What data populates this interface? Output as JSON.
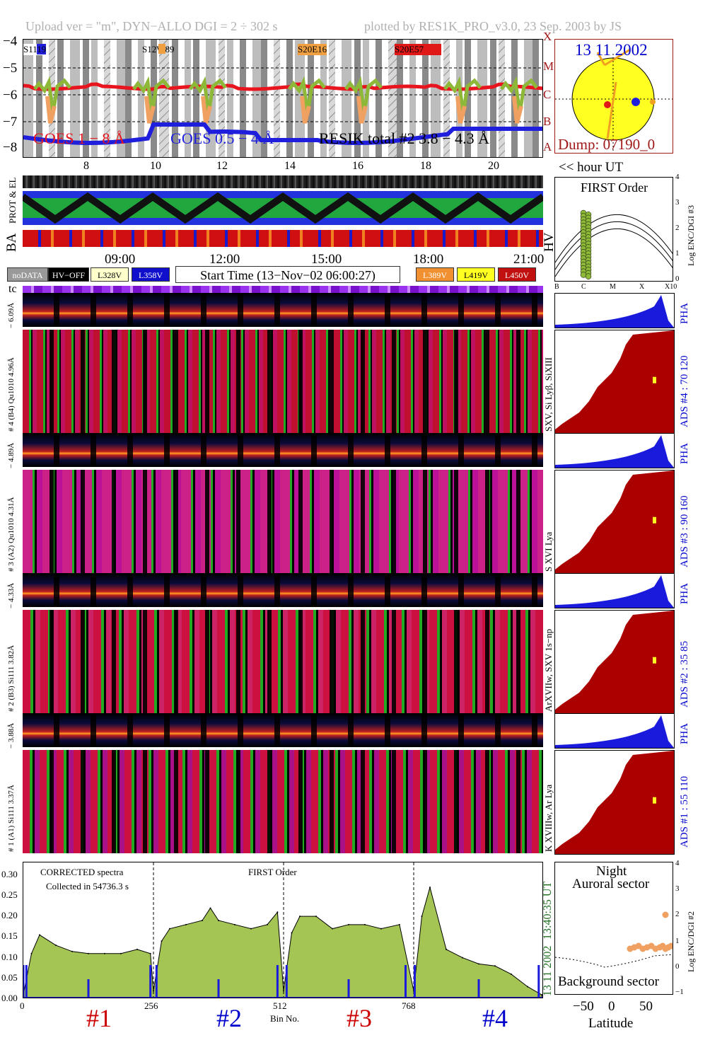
{
  "header": {
    "left": "Upload ver = \"m\", DYN−ALLO DGI =   2 ÷ 302 s",
    "right": "plotted by RES1K_PRO_v3.0, 23 Sep. 2003 by JS"
  },
  "goes": {
    "ylabels": [
      "−4",
      "−5",
      "−6",
      "−7",
      "−8"
    ],
    "class_labels": [
      "X",
      "M",
      "C",
      "B",
      "A"
    ],
    "active_regions": [
      "S11",
      "S12W89",
      "S20E16",
      "S20E57"
    ],
    "region_suffixes": [
      "19"
    ],
    "legend_goes1": "GOES 1 − 8 Å",
    "legend_goes05": "GOES 0.5 − 4 Å",
    "legend_resik": "RESIK total #2  3.8 − 4.3 Å",
    "hour_ticks": [
      "8",
      "10",
      "12",
      "14",
      "16",
      "18",
      "20"
    ],
    "hour_label": "<< hour UT",
    "colors": {
      "goes1": "#e8141e",
      "goes05": "#1e1edc",
      "resik": "#8db838"
    }
  },
  "sun": {
    "date": "13 11 2002",
    "dump": "Dump: 07190_0"
  },
  "orbit": {
    "labels": [
      "PROT & EL",
      "BA",
      "HV"
    ],
    "time_ticks": [
      "09:00",
      "12:00",
      "15:00",
      "18:00",
      "21:00"
    ]
  },
  "legend": {
    "nodata": "noDATA",
    "hvoff": "HV−OFF",
    "l328": "L328V",
    "l358": "L358V",
    "start_time": "Start Time (13−Nov−02 06:00:27)",
    "l389": "L389V",
    "l419": "L419V",
    "l450": "L450V",
    "tc": "tc"
  },
  "first_order": {
    "title": "FIRST Order",
    "ylabel": "Log ENC/DGI #3",
    "yticks": [
      "4",
      "3",
      "2",
      "1",
      "0"
    ],
    "xticks": [
      "B",
      "C",
      "M",
      "X",
      "X10"
    ]
  },
  "channels": [
    {
      "pha_label": "− 6.09Å",
      "name": "# 4 (B4) Qu1010 4.96Å",
      "line": "SXV, Si Lyβ, SiXIII",
      "ads": "ADS #4 :  70 120",
      "pha": "PHA"
    },
    {
      "pha_label": "− 4.89Å",
      "name": "# 3 (A2) Qu1010 4.31Å",
      "line": "S XVI Lya",
      "ads": "ADS #3 :  90 160",
      "pha": "PHA"
    },
    {
      "pha_label": "− 4.33Å",
      "name": "# 2 (B3) Si111 3.82Å",
      "line": "ArXVIIw, SXV 1s−np",
      "ads": "ADS #2 :  35 85",
      "pha": "PHA"
    },
    {
      "pha_label": "− 3.88Å",
      "name": "# 1 (A1) Si111 3.37Å",
      "line": "K XVIIIw, Ar Lya",
      "ads": "ADS #1 :  55 110",
      "pha": "PHA"
    }
  ],
  "spectrum": {
    "note1": "CORRECTED spectra",
    "note2": "Collected in 54736.3 s",
    "note3": "FIRST Order",
    "time_label": "13:40:35 UT",
    "date_label": "13 11 2002",
    "xlabel": "Bin No.",
    "yticks": [
      "0.30",
      "0.25",
      "0.20",
      "0.15",
      "0.10",
      "0.05",
      "0.00"
    ],
    "xticks": [
      "0",
      "256",
      "512",
      "768"
    ],
    "section_labels": [
      "#1",
      "#2",
      "#3",
      "#4"
    ],
    "section_colors": [
      "#cc0000",
      "#0000cc",
      "#cc0000",
      "#0000cc"
    ]
  },
  "latitude": {
    "title1": "Night",
    "title2": "Auroral sector",
    "bottom": "Background sector",
    "xlabel": "Latitude",
    "xticks": [
      "−50",
      "0",
      "50"
    ],
    "ylabel": "Log ENC/DGI #2",
    "yticks": [
      "4",
      "3",
      "2",
      "1",
      "0",
      "−1"
    ]
  },
  "chart_data": {
    "type": "area",
    "title": "",
    "xlabel": "Bin No.",
    "ylabel": "",
    "xlim": [
      0,
      1024
    ],
    "ylim": [
      0,
      0.32
    ],
    "series": [
      {
        "name": "",
        "x": [
          0,
          16,
          32,
          64,
          96,
          128,
          160,
          192,
          224,
          250,
          256,
          272,
          288,
          320,
          352,
          368,
          384,
          416,
          448,
          480,
          500,
          512,
          528,
          544,
          576,
          608,
          640,
          672,
          704,
          740,
          768,
          784,
          800,
          832,
          864,
          896,
          928,
          960,
          992,
          1020
        ],
        "values": [
          0.01,
          0.11,
          0.155,
          0.13,
          0.115,
          0.11,
          0.11,
          0.11,
          0.12,
          0.11,
          0.02,
          0.14,
          0.17,
          0.18,
          0.19,
          0.22,
          0.19,
          0.18,
          0.17,
          0.18,
          0.21,
          0.02,
          0.16,
          0.2,
          0.2,
          0.17,
          0.18,
          0.18,
          0.17,
          0.18,
          0.02,
          0.2,
          0.27,
          0.12,
          0.1,
          0.085,
          0.08,
          0.06,
          0.03,
          0.01
        ]
      }
    ]
  }
}
